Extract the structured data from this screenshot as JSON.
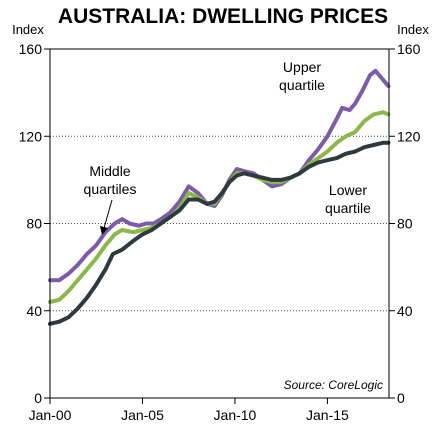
{
  "chart_data": {
    "type": "line",
    "title": "AUSTRALIA: DWELLING PRICES",
    "ylabel_left": "Index",
    "ylabel_right": "Index",
    "ylim": [
      0,
      160
    ],
    "yticks": [
      0,
      40,
      80,
      120,
      160
    ],
    "xlim": [
      2000.0,
      2018.33
    ],
    "xticks": [
      {
        "label": "Jan-00",
        "value": 2000
      },
      {
        "label": "Jan-05",
        "value": 2005
      },
      {
        "label": "Jan-10",
        "value": 2010
      },
      {
        "label": "Jan-15",
        "value": 2015
      }
    ],
    "grid": "horizontal dotted",
    "source": "Source: CoreLogic",
    "annotations": {
      "upper_line1": "Upper",
      "upper_line2": "quartile",
      "middle_line1": "Middle",
      "middle_line2": "quartiles",
      "lower_line1": "Lower",
      "lower_line2": "quartile"
    },
    "series": [
      {
        "key": "upper",
        "color": "#7b5ca8",
        "points": [
          [
            2000.0,
            54
          ],
          [
            2000.5,
            54
          ],
          [
            2001.0,
            57
          ],
          [
            2001.5,
            61
          ],
          [
            2002.0,
            66
          ],
          [
            2002.5,
            70
          ],
          [
            2003.0,
            76
          ],
          [
            2003.5,
            80
          ],
          [
            2003.9,
            82
          ],
          [
            2004.3,
            80
          ],
          [
            2004.8,
            79
          ],
          [
            2005.2,
            80
          ],
          [
            2005.6,
            80
          ],
          [
            2006.0,
            82
          ],
          [
            2006.5,
            85
          ],
          [
            2007.0,
            90
          ],
          [
            2007.5,
            97
          ],
          [
            2008.0,
            94
          ],
          [
            2008.5,
            89
          ],
          [
            2008.9,
            88
          ],
          [
            2009.3,
            93
          ],
          [
            2009.7,
            100
          ],
          [
            2010.1,
            105
          ],
          [
            2010.5,
            104
          ],
          [
            2011.0,
            103
          ],
          [
            2011.5,
            100
          ],
          [
            2012.0,
            97
          ],
          [
            2012.5,
            98
          ],
          [
            2013.0,
            101
          ],
          [
            2013.5,
            103
          ],
          [
            2014.0,
            109
          ],
          [
            2014.5,
            114
          ],
          [
            2015.0,
            120
          ],
          [
            2015.5,
            128
          ],
          [
            2015.8,
            133
          ],
          [
            2016.2,
            132
          ],
          [
            2016.5,
            135
          ],
          [
            2016.9,
            141
          ],
          [
            2017.3,
            148
          ],
          [
            2017.6,
            150
          ],
          [
            2017.9,
            147
          ],
          [
            2018.3,
            143
          ]
        ]
      },
      {
        "key": "middle",
        "color": "#8cb84a",
        "points": [
          [
            2000.0,
            44
          ],
          [
            2000.5,
            45
          ],
          [
            2001.0,
            49
          ],
          [
            2001.5,
            54
          ],
          [
            2002.0,
            59
          ],
          [
            2002.5,
            64
          ],
          [
            2003.0,
            70
          ],
          [
            2003.5,
            75
          ],
          [
            2003.9,
            77
          ],
          [
            2004.5,
            76
          ],
          [
            2005.0,
            77
          ],
          [
            2005.5,
            78
          ],
          [
            2006.0,
            80
          ],
          [
            2006.5,
            83
          ],
          [
            2007.0,
            87
          ],
          [
            2007.5,
            94
          ],
          [
            2008.0,
            92
          ],
          [
            2008.5,
            89
          ],
          [
            2008.9,
            89
          ],
          [
            2009.3,
            94
          ],
          [
            2009.7,
            99
          ],
          [
            2010.1,
            103
          ],
          [
            2010.5,
            103
          ],
          [
            2011.0,
            102
          ],
          [
            2011.5,
            100
          ],
          [
            2012.0,
            99
          ],
          [
            2012.5,
            99
          ],
          [
            2013.0,
            101
          ],
          [
            2013.5,
            103
          ],
          [
            2014.0,
            107
          ],
          [
            2014.5,
            110
          ],
          [
            2015.0,
            113
          ],
          [
            2015.5,
            117
          ],
          [
            2016.0,
            120
          ],
          [
            2016.5,
            122
          ],
          [
            2017.0,
            127
          ],
          [
            2017.5,
            130
          ],
          [
            2018.0,
            131
          ],
          [
            2018.3,
            130
          ]
        ]
      },
      {
        "key": "lower",
        "color": "#2f3a40",
        "points": [
          [
            2000.0,
            34
          ],
          [
            2000.5,
            35
          ],
          [
            2001.0,
            37
          ],
          [
            2001.5,
            41
          ],
          [
            2002.0,
            46
          ],
          [
            2002.5,
            52
          ],
          [
            2003.0,
            59
          ],
          [
            2003.4,
            66
          ],
          [
            2003.9,
            68
          ],
          [
            2004.5,
            72
          ],
          [
            2005.0,
            75
          ],
          [
            2005.5,
            77
          ],
          [
            2006.0,
            80
          ],
          [
            2006.5,
            83
          ],
          [
            2007.0,
            86
          ],
          [
            2007.5,
            91
          ],
          [
            2008.0,
            91
          ],
          [
            2008.5,
            89
          ],
          [
            2008.9,
            90
          ],
          [
            2009.3,
            94
          ],
          [
            2009.7,
            99
          ],
          [
            2010.1,
            102
          ],
          [
            2010.5,
            103
          ],
          [
            2011.0,
            102
          ],
          [
            2011.5,
            101
          ],
          [
            2012.0,
            100
          ],
          [
            2012.5,
            100
          ],
          [
            2013.0,
            101
          ],
          [
            2013.5,
            103
          ],
          [
            2014.0,
            106
          ],
          [
            2014.5,
            108
          ],
          [
            2015.0,
            109
          ],
          [
            2015.5,
            110
          ],
          [
            2016.0,
            112
          ],
          [
            2016.5,
            113
          ],
          [
            2017.0,
            115
          ],
          [
            2017.5,
            116
          ],
          [
            2018.0,
            117
          ],
          [
            2018.3,
            117
          ]
        ]
      }
    ]
  }
}
